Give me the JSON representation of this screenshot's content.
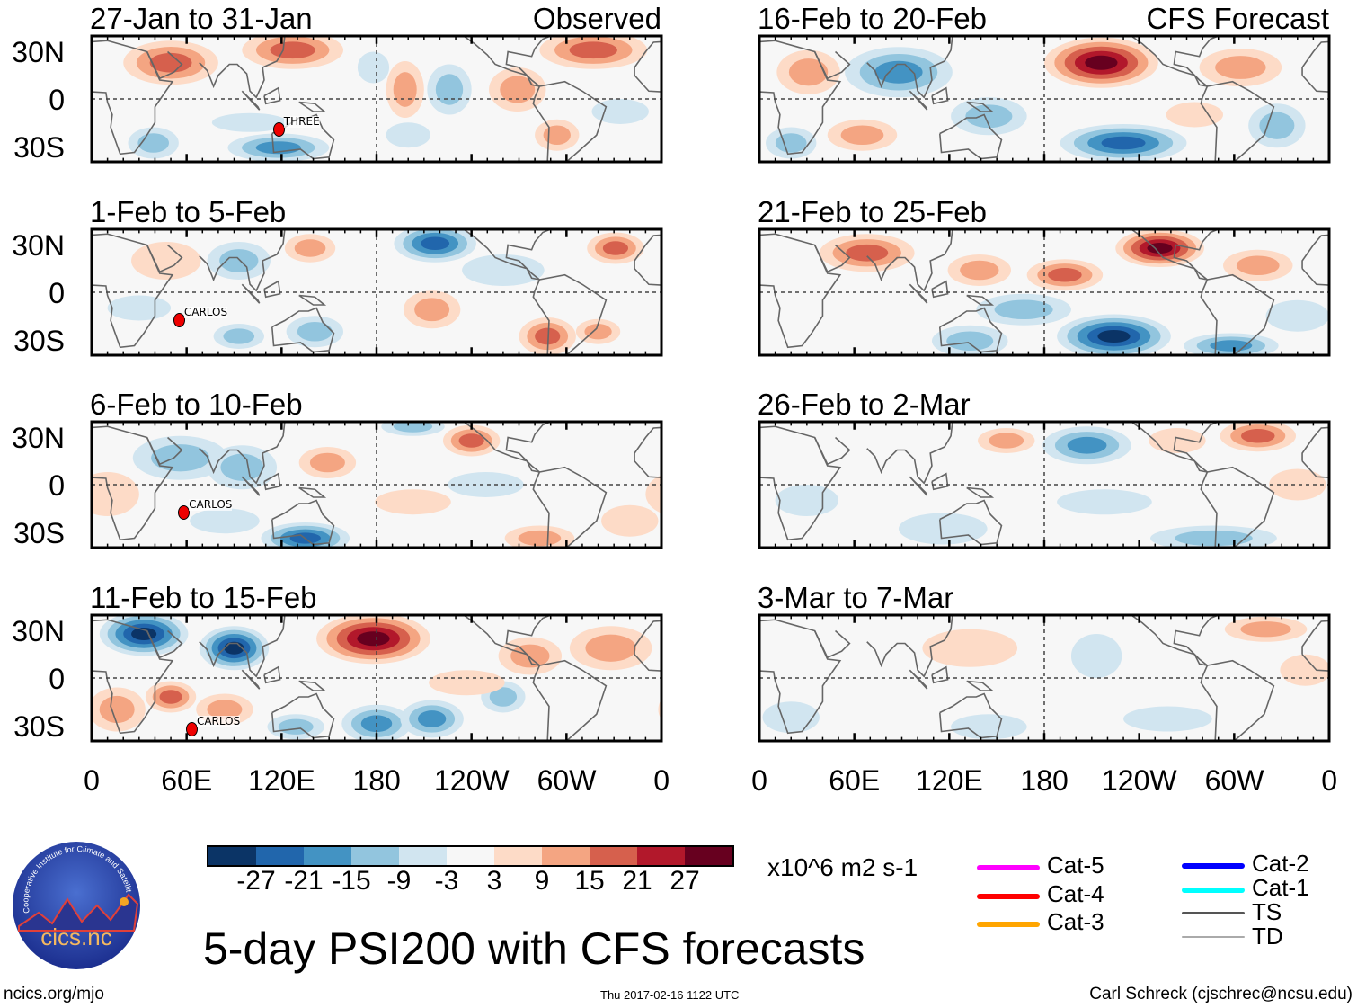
{
  "chart_data": {
    "type": "heatmap",
    "title": "5-day PSI200 with CFS forecasts",
    "units": "x10^6 m2 s-1",
    "x_ticks": [
      "0",
      "60E",
      "120E",
      "180",
      "120W",
      "60W",
      "0"
    ],
    "y_ticks": [
      "30N",
      "0",
      "30S"
    ],
    "colorbar": {
      "ticks": [
        "-27",
        "-21",
        "-15",
        "-9",
        "-3",
        "3",
        "9",
        "15",
        "21",
        "27"
      ],
      "colors": [
        "#0b3466",
        "#2166ac",
        "#4393c3",
        "#92c5de",
        "#d1e5f0",
        "#f7f7f7",
        "#fddbc7",
        "#f4a582",
        "#d6604d",
        "#b2182b",
        "#67001f"
      ]
    },
    "panels": [
      {
        "title": "27-Jan to 31-Jan",
        "tag": "Observed",
        "storms": [
          {
            "name": "THREE"
          }
        ]
      },
      {
        "title": "1-Feb to 5-Feb",
        "storms": [
          {
            "name": "CARLOS"
          }
        ]
      },
      {
        "title": "6-Feb to 10-Feb",
        "storms": [
          {
            "name": "CARLOS"
          }
        ]
      },
      {
        "title": "11-Feb to 15-Feb",
        "storms": [
          {
            "name": "CARLOS"
          }
        ]
      },
      {
        "title": "16-Feb to 20-Feb",
        "tag": "CFS Forecast",
        "storms": []
      },
      {
        "title": "21-Feb to 25-Feb",
        "storms": []
      },
      {
        "title": "26-Feb to 2-Mar",
        "storms": []
      },
      {
        "title": "3-Mar to 7-Mar",
        "storms": []
      }
    ]
  },
  "legend": [
    {
      "label": "Cat-5",
      "color": "#ff00ff"
    },
    {
      "label": "Cat-4",
      "color": "#ff0000"
    },
    {
      "label": "Cat-3",
      "color": "#ffa500"
    },
    {
      "label": "Cat-2",
      "color": "#0000ff"
    },
    {
      "label": "Cat-1",
      "color": "#00ffff"
    },
    {
      "label": "TS",
      "color": "#555555"
    },
    {
      "label": "TD",
      "color": "#aaaaaa"
    }
  ],
  "logo": {
    "text": "cics.nc",
    "ring": "Cooperative Institute for Climate and Satellites"
  },
  "footer": {
    "left": "ncics.org/mjo",
    "center": "Thu 2017-02-16 1122 UTC",
    "right": "Carl Schreck (cjschrec@ncsu.edu)"
  }
}
